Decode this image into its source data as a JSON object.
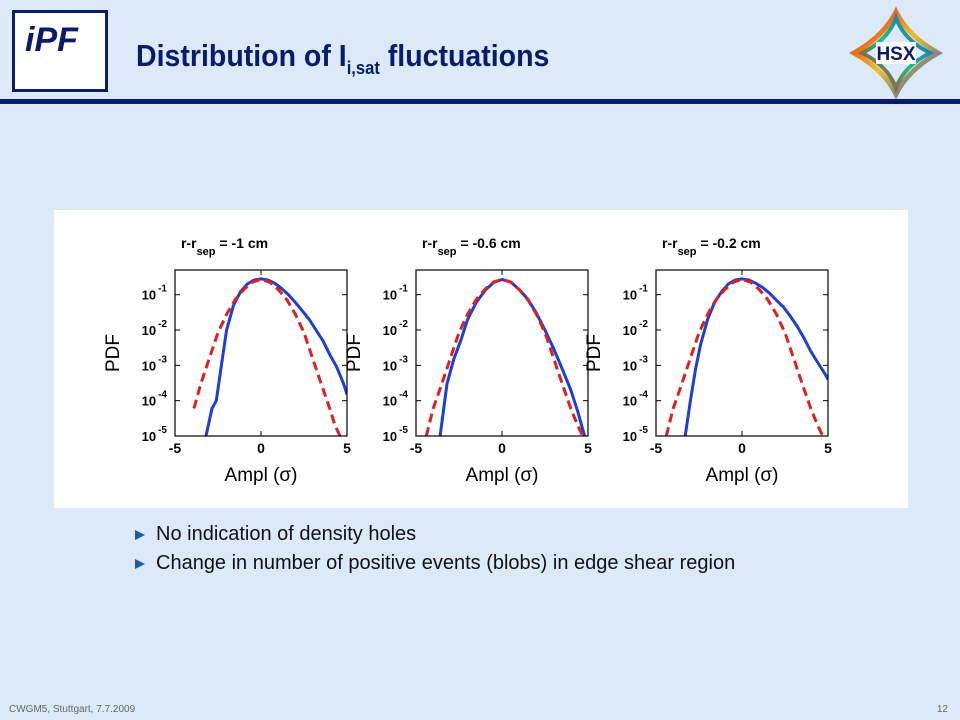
{
  "header": {
    "logo_text": "iPF",
    "title_main": "Distribution of I",
    "title_sub": "i,sat",
    "title_tail": " fluctuations",
    "right_logo_text": "HSX"
  },
  "colors": {
    "navy": "#0a1b6e",
    "measured": "#1f3fd4",
    "gaussian": "#e02020",
    "background": "#dbe9f8"
  },
  "chart_data": [
    {
      "type": "line",
      "log_y": true,
      "title_prefix": "r-r",
      "title_sub": "sep",
      "title_suffix": " = -1 cm",
      "xlabel": "Ampl (σ)",
      "ylabel": "PDF",
      "xlim": [
        -5,
        5
      ],
      "ylim": [
        1e-05,
        0.5
      ],
      "xticks": [
        {
          "v": -5,
          "label": "-5"
        },
        {
          "v": 0,
          "label": "0"
        },
        {
          "v": 5,
          "label": "5"
        }
      ],
      "yticks": [
        {
          "v": 0.1,
          "base": "10",
          "exp": "-1"
        },
        {
          "v": 0.01,
          "base": "10",
          "exp": "-2"
        },
        {
          "v": 0.001,
          "base": "10",
          "exp": "-3"
        },
        {
          "v": 0.0001,
          "base": "10",
          "exp": "-4"
        },
        {
          "v": 1e-05,
          "base": "10",
          "exp": "-5"
        }
      ],
      "series": [
        {
          "style": "solid",
          "color": "#1f3fd4",
          "x": [
            -3.2,
            -2.85,
            -2.6,
            -2.3,
            -2.0,
            -1.6,
            -1.2,
            -0.8,
            -0.4,
            0.0,
            0.4,
            0.8,
            1.2,
            1.6,
            2.0,
            2.4,
            2.8,
            3.2,
            3.6,
            4.0,
            4.4,
            4.8,
            5.0
          ],
          "y": [
            1e-05,
            6e-05,
            0.0001,
            0.001,
            0.01,
            0.05,
            0.12,
            0.2,
            0.26,
            0.28,
            0.26,
            0.21,
            0.15,
            0.1,
            0.06,
            0.035,
            0.02,
            0.01,
            0.005,
            0.002,
            0.0009,
            0.0003,
            0.00015
          ]
        },
        {
          "style": "dashed",
          "color": "#e02020",
          "x": [
            -3.9,
            -3.5,
            -3.0,
            -2.5,
            -2.0,
            -1.5,
            -1.0,
            -0.5,
            0.0,
            0.5,
            1.0,
            1.5,
            2.0,
            2.5,
            3.0,
            3.5,
            4.0,
            4.3,
            4.6
          ],
          "y": [
            6e-05,
            0.0003,
            0.0016,
            0.0084,
            0.0278,
            0.0725,
            0.1406,
            0.227,
            0.2706,
            0.227,
            0.1406,
            0.0725,
            0.0278,
            0.0084,
            0.0016,
            0.0003,
            6e-05,
            2e-05,
            1e-05
          ]
        }
      ]
    },
    {
      "type": "line",
      "log_y": true,
      "title_prefix": "r-r",
      "title_sub": "sep",
      "title_suffix": " = -0.6 cm",
      "xlabel": "Ampl (σ)",
      "ylabel": "PDF",
      "xlim": [
        -5,
        5
      ],
      "ylim": [
        1e-05,
        0.5
      ],
      "xticks": [
        {
          "v": -5,
          "label": "-5"
        },
        {
          "v": 0,
          "label": "0"
        },
        {
          "v": 5,
          "label": "5"
        }
      ],
      "yticks": [
        {
          "v": 0.1,
          "base": "10",
          "exp": "-1"
        },
        {
          "v": 0.01,
          "base": "10",
          "exp": "-2"
        },
        {
          "v": 0.001,
          "base": "10",
          "exp": "-3"
        },
        {
          "v": 0.0001,
          "base": "10",
          "exp": "-4"
        },
        {
          "v": 1e-05,
          "base": "10",
          "exp": "-5"
        }
      ],
      "series": [
        {
          "style": "solid",
          "color": "#1f3fd4",
          "x": [
            -3.6,
            -3.2,
            -2.8,
            -2.4,
            -2.0,
            -1.5,
            -1.0,
            -0.5,
            0.0,
            0.5,
            1.0,
            1.5,
            2.0,
            2.5,
            3.0,
            3.5,
            4.0,
            4.4,
            4.8
          ],
          "y": [
            1e-05,
            0.0003,
            0.0015,
            0.005,
            0.02,
            0.06,
            0.13,
            0.22,
            0.27,
            0.23,
            0.14,
            0.075,
            0.03,
            0.01,
            0.003,
            0.0008,
            0.0002,
            5e-05,
            1e-05
          ]
        },
        {
          "style": "dashed",
          "color": "#e02020",
          "x": [
            -4.4,
            -4.0,
            -3.5,
            -3.0,
            -2.5,
            -2.0,
            -1.5,
            -1.0,
            -0.5,
            0.0,
            0.5,
            1.0,
            1.5,
            2.0,
            2.5,
            3.0,
            3.5,
            4.0,
            4.4,
            4.7
          ],
          "y": [
            1e-05,
            6e-05,
            0.0003,
            0.0016,
            0.0084,
            0.0278,
            0.0725,
            0.1406,
            0.227,
            0.2706,
            0.227,
            0.1406,
            0.0725,
            0.0278,
            0.0084,
            0.0016,
            0.0003,
            6e-05,
            2e-05,
            1e-05
          ]
        }
      ]
    },
    {
      "type": "line",
      "log_y": true,
      "title_prefix": "r-r",
      "title_sub": "sep",
      "title_suffix": " = -0.2 cm",
      "xlabel": "Ampl (σ)",
      "ylabel": "PDF",
      "xlim": [
        -5,
        5
      ],
      "ylim": [
        1e-05,
        0.5
      ],
      "xticks": [
        {
          "v": -5,
          "label": "-5"
        },
        {
          "v": 0,
          "label": "0"
        },
        {
          "v": 5,
          "label": "5"
        }
      ],
      "yticks": [
        {
          "v": 0.1,
          "base": "10",
          "exp": "-1"
        },
        {
          "v": 0.01,
          "base": "10",
          "exp": "-2"
        },
        {
          "v": 0.001,
          "base": "10",
          "exp": "-3"
        },
        {
          "v": 0.0001,
          "base": "10",
          "exp": "-4"
        },
        {
          "v": 1e-05,
          "base": "10",
          "exp": "-5"
        }
      ],
      "series": [
        {
          "style": "solid",
          "color": "#1f3fd4",
          "x": [
            -3.3,
            -3.0,
            -2.7,
            -2.4,
            -2.0,
            -1.6,
            -1.2,
            -0.8,
            -0.4,
            0.0,
            0.4,
            0.8,
            1.2,
            1.6,
            2.0,
            2.4,
            2.8,
            3.2,
            3.6,
            4.0,
            4.4,
            4.8,
            5.0
          ],
          "y": [
            1e-05,
            0.0001,
            0.0008,
            0.004,
            0.02,
            0.06,
            0.12,
            0.2,
            0.26,
            0.28,
            0.26,
            0.21,
            0.16,
            0.11,
            0.07,
            0.045,
            0.025,
            0.013,
            0.006,
            0.0025,
            0.0012,
            0.0006,
            0.0004
          ]
        },
        {
          "style": "dashed",
          "color": "#e02020",
          "x": [
            -4.4,
            -4.0,
            -3.5,
            -3.0,
            -2.5,
            -2.0,
            -1.5,
            -1.0,
            -0.5,
            0.0,
            0.5,
            1.0,
            1.5,
            2.0,
            2.5,
            3.0,
            3.5,
            4.0,
            4.4,
            4.7
          ],
          "y": [
            1e-05,
            6e-05,
            0.0003,
            0.0016,
            0.0084,
            0.0278,
            0.0725,
            0.1406,
            0.227,
            0.2706,
            0.227,
            0.1406,
            0.0725,
            0.0278,
            0.0084,
            0.0016,
            0.0003,
            6e-05,
            2e-05,
            1e-05
          ]
        }
      ]
    }
  ],
  "bullets": [
    "No indication of density holes",
    "Change in number of positive events (blobs) in edge shear region"
  ],
  "footer": {
    "left": "CWGM5, Stuttgart, 7.7.2009",
    "right": "12"
  }
}
